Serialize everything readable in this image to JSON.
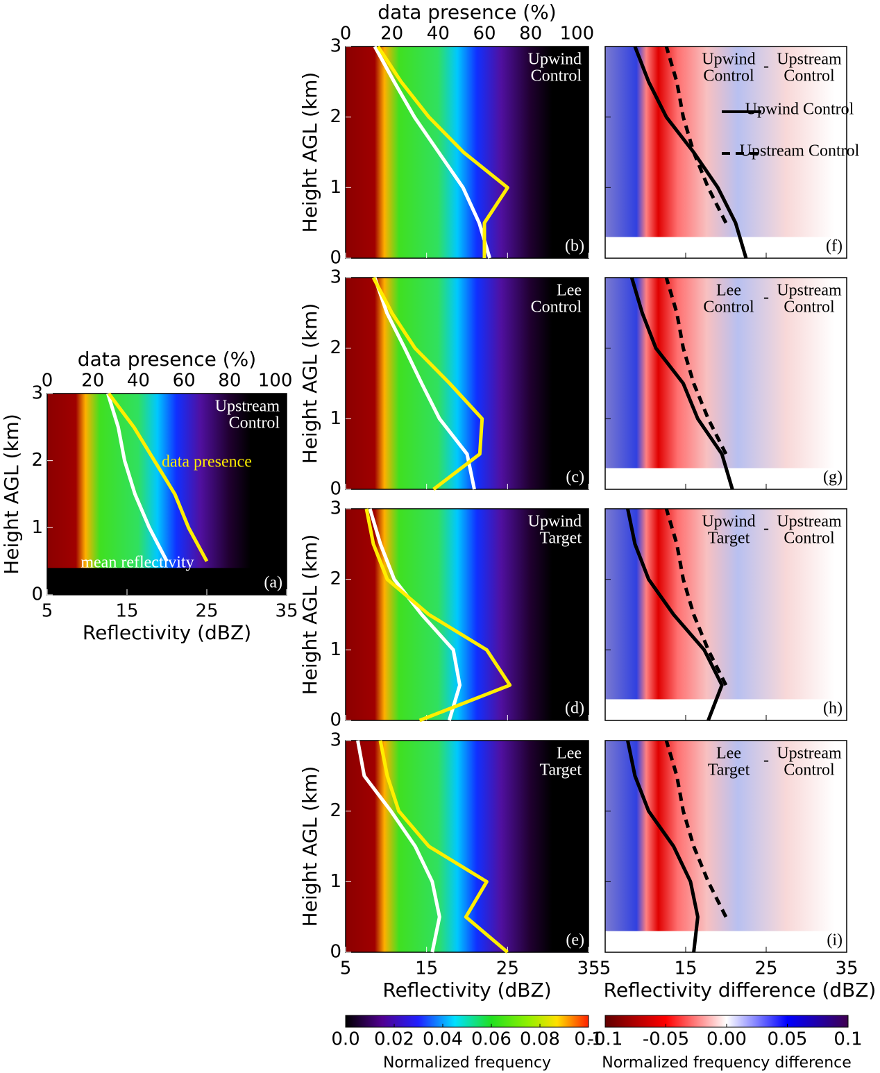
{
  "chart_data": [
    {
      "type": "profile",
      "panel": "(a)",
      "annotation": [
        "Upstream",
        "Control"
      ],
      "xlim": [
        5,
        35
      ],
      "ylim": [
        0,
        3
      ],
      "x2lim": [
        0,
        105
      ],
      "xticks": [
        5,
        15,
        25,
        35
      ],
      "yticks": [
        0,
        1,
        2,
        3
      ],
      "x2ticks": [
        0,
        20,
        40,
        60,
        80,
        100
      ],
      "xlabel": "Reflectivity (dBZ)",
      "ylabel": "Height AGL (km)",
      "x2label": "data presence (%)",
      "heights": [
        0,
        0.5,
        1,
        1.5,
        2,
        2.5,
        3
      ],
      "series": [
        {
          "name": "mean reflectivity",
          "color": "#ffffff",
          "values": [
            null,
            20,
            17.8,
            16,
            14.7,
            13.9,
            12.6
          ]
        },
        {
          "name": "data presence",
          "color": "#ffee00",
          "axis": "x2",
          "values": [
            null,
            70,
            62,
            56,
            47,
            38,
            27
          ]
        }
      ]
    },
    {
      "type": "profile",
      "panel": "(b)",
      "annotation": [
        "Upwind",
        "Control"
      ],
      "xlim": [
        5,
        35
      ],
      "ylim": [
        0,
        3
      ],
      "x2lim": [
        0,
        105
      ],
      "xticks": [
        5,
        15,
        25,
        35
      ],
      "yticks": [
        0,
        1,
        2,
        3
      ],
      "x2ticks": [
        0,
        20,
        40,
        60,
        80,
        100
      ],
      "ylabel": "Height AGL (km)",
      "x2label": "data presence (%)",
      "heights": [
        0,
        0.5,
        1,
        1.5,
        2,
        2.5,
        3
      ],
      "series": [
        {
          "color": "#ffffff",
          "values": [
            22.8,
            21.5,
            19.5,
            16.5,
            13.5,
            11,
            8.6
          ]
        },
        {
          "color": "#ffee00",
          "axis": "x2",
          "values": [
            60,
            60,
            70,
            51,
            36,
            24,
            14
          ]
        }
      ]
    },
    {
      "type": "profile",
      "panel": "(c)",
      "annotation": [
        "Lee",
        "Control"
      ],
      "xlim": [
        5,
        35
      ],
      "ylim": [
        0,
        3
      ],
      "x2lim": [
        0,
        105
      ],
      "xticks": [
        5,
        15,
        25,
        35
      ],
      "yticks": [
        0,
        1,
        2,
        3
      ],
      "ylabel": "Height AGL (km)",
      "heights": [
        0,
        0.5,
        1,
        1.5,
        2,
        2.5,
        3
      ],
      "series": [
        {
          "color": "#ffffff",
          "values": [
            20.9,
            20,
            16.6,
            14.4,
            12.3,
            10.1,
            8.6
          ]
        },
        {
          "color": "#ffee00",
          "axis": "x2",
          "values": [
            38,
            58,
            59,
            45,
            30,
            20,
            12
          ]
        }
      ]
    },
    {
      "type": "profile",
      "panel": "(d)",
      "annotation": [
        "Upwind",
        "Target"
      ],
      "xlim": [
        5,
        35
      ],
      "ylim": [
        0,
        3
      ],
      "x2lim": [
        0,
        105
      ],
      "xticks": [
        5,
        15,
        25,
        35
      ],
      "yticks": [
        0,
        1,
        2,
        3
      ],
      "ylabel": "Height AGL (km)",
      "heights": [
        0,
        0.5,
        1,
        1.5,
        2,
        2.5,
        3
      ],
      "series": [
        {
          "color": "#ffffff",
          "values": [
            17.8,
            19.1,
            18.3,
            14.4,
            11,
            9.3,
            8
          ]
        },
        {
          "color": "#ffee00",
          "axis": "x2",
          "values": [
            32,
            71,
            61,
            36,
            18,
            12,
            9
          ]
        }
      ]
    },
    {
      "type": "profile",
      "panel": "(e)",
      "annotation": [
        "Lee",
        "Target"
      ],
      "xlim": [
        5,
        35
      ],
      "ylim": [
        0,
        3
      ],
      "x2lim": [
        0,
        105
      ],
      "xticks": [
        5,
        15,
        25,
        35
      ],
      "yticks": [
        0,
        1,
        2,
        3
      ],
      "xlabel": "Reflectivity (dBZ)",
      "ylabel": "Height AGL (km)",
      "heights": [
        0,
        0.5,
        1,
        1.5,
        2,
        2.5,
        3
      ],
      "series": [
        {
          "color": "#ffffff",
          "values": [
            15.7,
            16.6,
            15.7,
            13.6,
            10.6,
            7.3,
            6.5
          ]
        },
        {
          "color": "#ffee00",
          "axis": "x2",
          "values": [
            70,
            52,
            61,
            36,
            23,
            18,
            15
          ]
        }
      ]
    },
    {
      "type": "difference",
      "panel": "(f)",
      "minuend": [
        "Upwind",
        "Control"
      ],
      "operator": "-",
      "subtrahend": [
        "Upstream",
        "Control"
      ],
      "legend": true,
      "xlim": [
        5,
        35
      ],
      "ylim": [
        0,
        3
      ],
      "xticks": [
        5,
        15,
        25,
        35
      ],
      "yticks": [
        0,
        1,
        2,
        3
      ],
      "heights": [
        0,
        0.5,
        1,
        1.5,
        2,
        2.5,
        3
      ],
      "series": [
        {
          "name": "Upwind Control",
          "color": "#000000",
          "values": [
            22.5,
            21.2,
            19,
            16,
            12.6,
            10.4,
            8.7
          ]
        },
        {
          "name": "Upstream Control",
          "color": "#000000",
          "dashed": true,
          "values": [
            null,
            20,
            17.8,
            16,
            14.7,
            13.9,
            12.6
          ]
        }
      ]
    },
    {
      "type": "difference",
      "panel": "(g)",
      "minuend": [
        "Lee",
        "Control"
      ],
      "operator": "-",
      "subtrahend": [
        "Upstream",
        "Control"
      ],
      "xlim": [
        5,
        35
      ],
      "ylim": [
        0,
        3
      ],
      "xticks": [
        5,
        15,
        25,
        35
      ],
      "yticks": [
        0,
        1,
        2,
        3
      ],
      "heights": [
        0,
        0.5,
        1,
        1.5,
        2,
        2.5,
        3
      ],
      "series": [
        {
          "color": "#000000",
          "values": [
            20.8,
            19.5,
            16.5,
            14.7,
            11.3,
            9.6,
            8.3
          ]
        },
        {
          "color": "#000000",
          "dashed": true,
          "values": [
            null,
            20,
            17.8,
            16,
            14.7,
            13.9,
            12.6
          ]
        }
      ]
    },
    {
      "type": "difference",
      "panel": "(h)",
      "minuend": [
        "Upwind",
        "Target"
      ],
      "operator": "-",
      "subtrahend": [
        "Upstream",
        "Control"
      ],
      "xlim": [
        5,
        35
      ],
      "ylim": [
        0,
        3
      ],
      "xticks": [
        5,
        15,
        25,
        35
      ],
      "yticks": [
        0,
        1,
        2,
        3
      ],
      "heights": [
        0,
        0.5,
        1,
        1.5,
        2,
        2.5,
        3
      ],
      "series": [
        {
          "color": "#000000",
          "values": [
            17.8,
            19.5,
            17.3,
            13.5,
            10.4,
            8.7,
            7.8
          ]
        },
        {
          "color": "#000000",
          "dashed": true,
          "values": [
            null,
            20,
            17.8,
            16,
            14.7,
            13.9,
            12.6
          ]
        }
      ]
    },
    {
      "type": "difference",
      "panel": "(i)",
      "minuend": [
        "Lee",
        "Target"
      ],
      "operator": "-",
      "subtrahend": [
        "Upstream",
        "Control"
      ],
      "xlim": [
        5,
        35
      ],
      "ylim": [
        0,
        3
      ],
      "xticks": [
        5,
        15,
        25,
        35
      ],
      "yticks": [
        0,
        1,
        2,
        3
      ],
      "xlabel": "Reflectivity difference (dBZ)",
      "heights": [
        0,
        0.5,
        1,
        1.5,
        2,
        2.5,
        3
      ],
      "series": [
        {
          "color": "#000000",
          "values": [
            16,
            16.5,
            15.6,
            13.5,
            10.4,
            8.7,
            7.8
          ]
        },
        {
          "color": "#000000",
          "dashed": true,
          "values": [
            null,
            20,
            17.8,
            16,
            14.7,
            13.9,
            12.6
          ]
        }
      ]
    }
  ],
  "colorbars": [
    {
      "label": "Normalized frequency",
      "lim": [
        0,
        0.1
      ],
      "ticks": [
        {
          "value": 0,
          "label": "0.0"
        },
        0.02,
        0.04,
        0.06,
        0.08,
        0.1
      ]
    },
    {
      "label": "Normalized frequency difference",
      "lim": [
        -0.1,
        0.1
      ],
      "ticks": [
        -0.1,
        -0.05,
        {
          "value": 0,
          "label": "0.00"
        },
        0.05,
        0.1
      ]
    }
  ]
}
